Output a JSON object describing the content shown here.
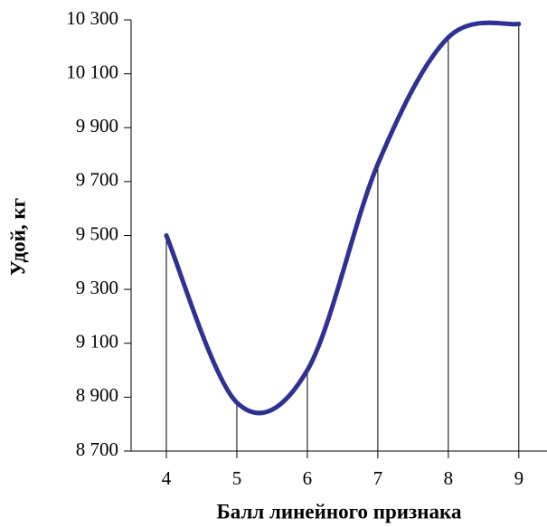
{
  "chart_data": {
    "type": "line",
    "x_label": "Балл линейного признака",
    "y_label": "Удой, кг",
    "x": [
      4,
      5,
      6,
      7,
      8,
      9
    ],
    "series": [
      {
        "color": "#2e3192",
        "values": [
          9500,
          8880,
          9000,
          9765,
          10235,
          10285
        ]
      }
    ],
    "xlim": [
      3.5,
      9.4
    ],
    "xticks": [
      4,
      5,
      6,
      7,
      8,
      9
    ],
    "ylim": [
      8700,
      10300
    ],
    "yticks": [
      {
        "value": 8700,
        "label": "8 700"
      },
      {
        "value": 8900,
        "label": "8 900"
      },
      {
        "value": 9100,
        "label": "9 100"
      },
      {
        "value": 9300,
        "label": "9 300"
      },
      {
        "value": 9500,
        "label": "9 500"
      },
      {
        "value": 9700,
        "label": "9 700"
      },
      {
        "value": 9900,
        "label": "9 900"
      },
      {
        "value": 10100,
        "label": "10 100"
      },
      {
        "value": 10300,
        "label": "10 300"
      }
    ],
    "drop_lines": true
  }
}
